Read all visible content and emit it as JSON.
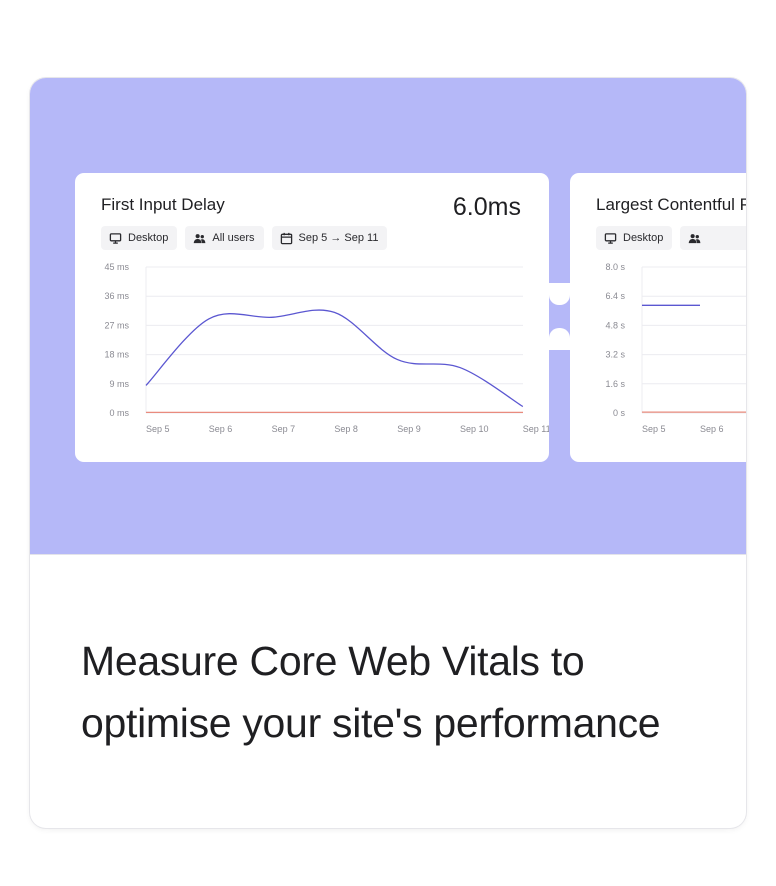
{
  "headline": "Measure Core Web Vitals to optimise your site's performance",
  "colors": {
    "hero_background": "#b5b8f8",
    "series_line": "#5b57d1",
    "baseline": "#e98b7e"
  },
  "panels": [
    {
      "title": "First Input Delay",
      "value": "6.0ms",
      "chips": [
        {
          "icon": "monitor-icon",
          "label": "Desktop"
        },
        {
          "icon": "users-icon",
          "label": "All users"
        },
        {
          "icon": "calendar-icon",
          "label": "Sep 5 → Sep 11"
        }
      ],
      "chart_data": {
        "type": "line",
        "x": [
          "Sep 5",
          "Sep 6",
          "Sep 7",
          "Sep 8",
          "Sep 9",
          "Sep 10",
          "Sep 11"
        ],
        "y_ticks": [
          "45 ms",
          "36 ms",
          "27 ms",
          "18 ms",
          "9 ms",
          "0 ms"
        ],
        "ylim": [
          0,
          45
        ],
        "series": [
          {
            "values": [
              8.5,
              29,
              29.5,
              31,
              16.5,
              14,
              2
            ]
          },
          {
            "values": [
              0.2,
              0.2,
              0.2,
              0.2,
              0.2,
              0.2,
              0.2
            ]
          }
        ]
      }
    },
    {
      "title": "Largest Contentful Paint",
      "chips": [
        {
          "icon": "monitor-icon",
          "label": "Desktop"
        },
        {
          "icon": "users-icon",
          "label": ""
        }
      ],
      "chart_data": {
        "type": "line",
        "x": [
          "Sep 5",
          "Sep 6"
        ],
        "y_ticks": [
          "8.0 s",
          "6.4 s",
          "4.8 s",
          "3.2 s",
          "1.6 s",
          "0 s"
        ],
        "ylim": [
          0,
          8
        ],
        "series": [
          {
            "values": [
              5.9,
              5.9
            ]
          },
          {
            "values": [
              0.05,
              0.05
            ]
          }
        ]
      }
    }
  ]
}
